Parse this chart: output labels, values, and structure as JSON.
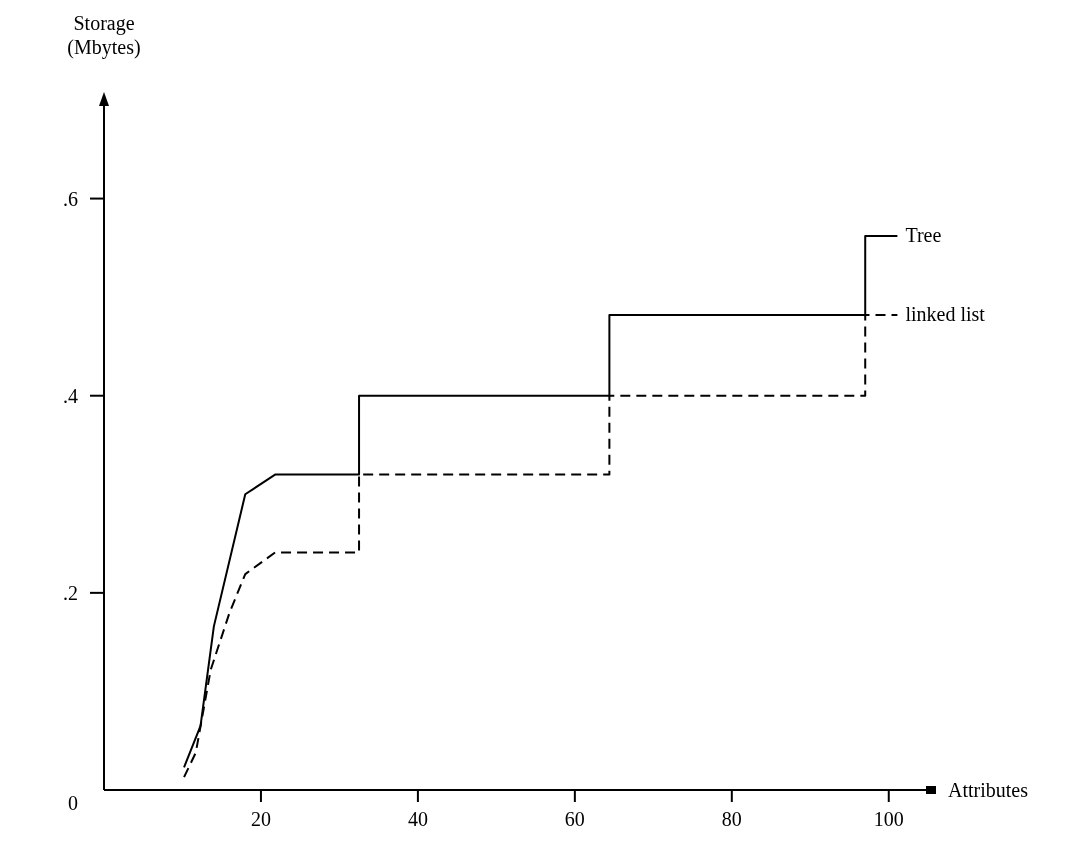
{
  "chart_data": {
    "type": "line",
    "xlabel": "Attributes",
    "ylabel": "Storage (Mbytes)",
    "xlim": [
      0,
      105
    ],
    "ylim": [
      0,
      0.7
    ],
    "xticks": [
      20,
      40,
      60,
      80,
      100
    ],
    "yticks": [
      {
        "value": 0,
        "label": "0"
      },
      {
        "value": 0.2,
        "label": ".2"
      },
      {
        "value": 0.4,
        "label": ".4"
      },
      {
        "value": 0.6,
        "label": ".6"
      }
    ],
    "grid": false,
    "marker": "none",
    "series": [
      {
        "name": "Tree",
        "color": "#000000",
        "line_style": "solid",
        "x": [
          10.2,
          12.3,
          14,
          18,
          21.8,
          32.5,
          32.5,
          64.4,
          64.4,
          97,
          97,
          101.1
        ],
        "values": [
          0.023,
          0.065,
          0.166,
          0.3,
          0.32,
          0.32,
          0.4,
          0.4,
          0.482,
          0.482,
          0.562,
          0.562
        ]
      },
      {
        "name": "linked list",
        "color": "#000000",
        "line_style": "dashed",
        "x": [
          10.2,
          11.7,
          13.6,
          16,
          18,
          21.8,
          32.5,
          32.5,
          64.4,
          64.4,
          97,
          97,
          101.1
        ],
        "values": [
          0.013,
          0.038,
          0.122,
          0.18,
          0.219,
          0.241,
          0.241,
          0.32,
          0.32,
          0.4,
          0.4,
          0.482,
          0.482
        ]
      }
    ]
  }
}
